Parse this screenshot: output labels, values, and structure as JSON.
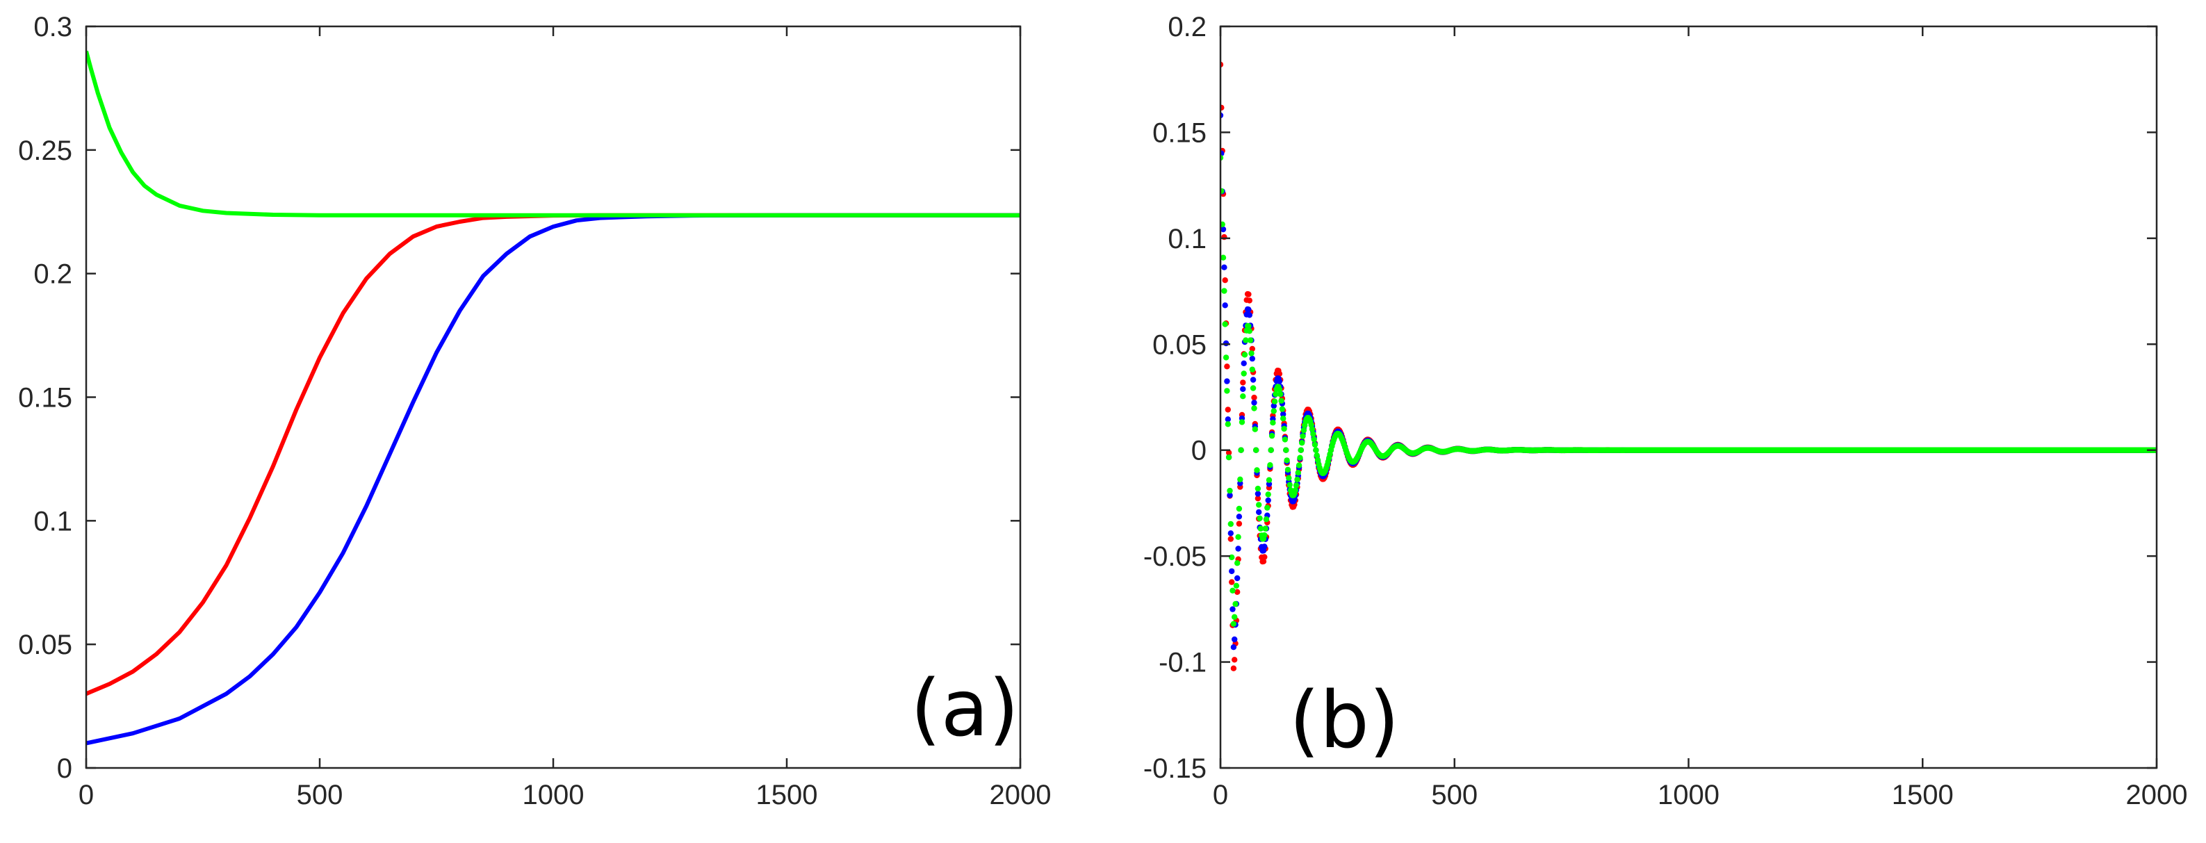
{
  "chart_data": [
    {
      "type": "line",
      "panel_label": "(a)",
      "xlim": [
        0,
        2000
      ],
      "ylim": [
        0,
        0.3
      ],
      "xticks": [
        0,
        500,
        1000,
        1500,
        2000
      ],
      "yticks": [
        0,
        0.05,
        0.1,
        0.15,
        0.2,
        0.25,
        0.3
      ],
      "xtick_labels": [
        "0",
        "500",
        "1000",
        "1500",
        "2000"
      ],
      "ytick_labels": [
        "0",
        "0.05",
        "0.1",
        "0.15",
        "0.2",
        "0.25",
        "0.3"
      ],
      "grid": false,
      "series": [
        {
          "color": "#ff0000",
          "x": [
            0,
            50,
            100,
            150,
            200,
            250,
            300,
            350,
            400,
            450,
            500,
            550,
            600,
            650,
            700,
            750,
            800,
            850,
            900,
            1000,
            1100,
            1200,
            1500,
            2000
          ],
          "y": [
            0.03,
            0.034,
            0.039,
            0.046,
            0.055,
            0.067,
            0.082,
            0.101,
            0.122,
            0.145,
            0.166,
            0.184,
            0.198,
            0.208,
            0.215,
            0.219,
            0.221,
            0.2225,
            0.223,
            0.2235,
            0.2236,
            0.2236,
            0.2236,
            0.2236
          ]
        },
        {
          "color": "#0000ff",
          "x": [
            0,
            100,
            200,
            300,
            350,
            400,
            450,
            500,
            550,
            600,
            650,
            700,
            750,
            800,
            850,
            900,
            950,
            1000,
            1050,
            1100,
            1200,
            1300,
            1500,
            2000
          ],
          "y": [
            0.01,
            0.014,
            0.02,
            0.03,
            0.037,
            0.046,
            0.057,
            0.071,
            0.087,
            0.106,
            0.127,
            0.148,
            0.168,
            0.185,
            0.199,
            0.208,
            0.215,
            0.219,
            0.2215,
            0.2225,
            0.2232,
            0.2235,
            0.2236,
            0.2236
          ]
        },
        {
          "color": "#00ff00",
          "x": [
            0,
            10,
            25,
            50,
            75,
            100,
            125,
            150,
            200,
            250,
            300,
            400,
            500,
            1000,
            1500,
            2000
          ],
          "y": [
            0.29,
            0.283,
            0.273,
            0.259,
            0.249,
            0.241,
            0.2355,
            0.232,
            0.2275,
            0.2254,
            0.2245,
            0.2238,
            0.2236,
            0.2236,
            0.2236,
            0.2236
          ]
        }
      ]
    },
    {
      "type": "scatter",
      "panel_label": "(b)",
      "xlim": [
        0,
        2000
      ],
      "ylim": [
        -0.15,
        0.2
      ],
      "xticks": [
        0,
        500,
        1000,
        1500,
        2000
      ],
      "yticks": [
        -0.15,
        -0.1,
        -0.05,
        0,
        0.05,
        0.1,
        0.15,
        0.2
      ],
      "xtick_labels": [
        "0",
        "500",
        "1000",
        "1500",
        "2000"
      ],
      "ytick_labels": [
        "-0.15",
        "-0.1",
        "-0.05",
        "0",
        "0.05",
        "0.1",
        "0.15",
        "0.2"
      ],
      "grid": false,
      "series": [
        {
          "color": "#ff0000",
          "x_start": 0,
          "x_end": 2000,
          "x_step": 2,
          "initial": 0.182,
          "trough": -0.103,
          "peak": 0.065,
          "period": 64,
          "decay_time": 95
        },
        {
          "color": "#0000ff",
          "x_start": 0,
          "x_end": 2000,
          "x_step": 2,
          "initial": 0.158,
          "trough": -0.093,
          "peak": 0.06,
          "period": 64,
          "decay_time": 95
        },
        {
          "color": "#00ff00",
          "x_start": 0,
          "x_end": 2000,
          "x_step": 2,
          "initial": 0.138,
          "trough": -0.082,
          "peak": 0.054,
          "period": 64,
          "decay_time": 95
        }
      ]
    }
  ]
}
